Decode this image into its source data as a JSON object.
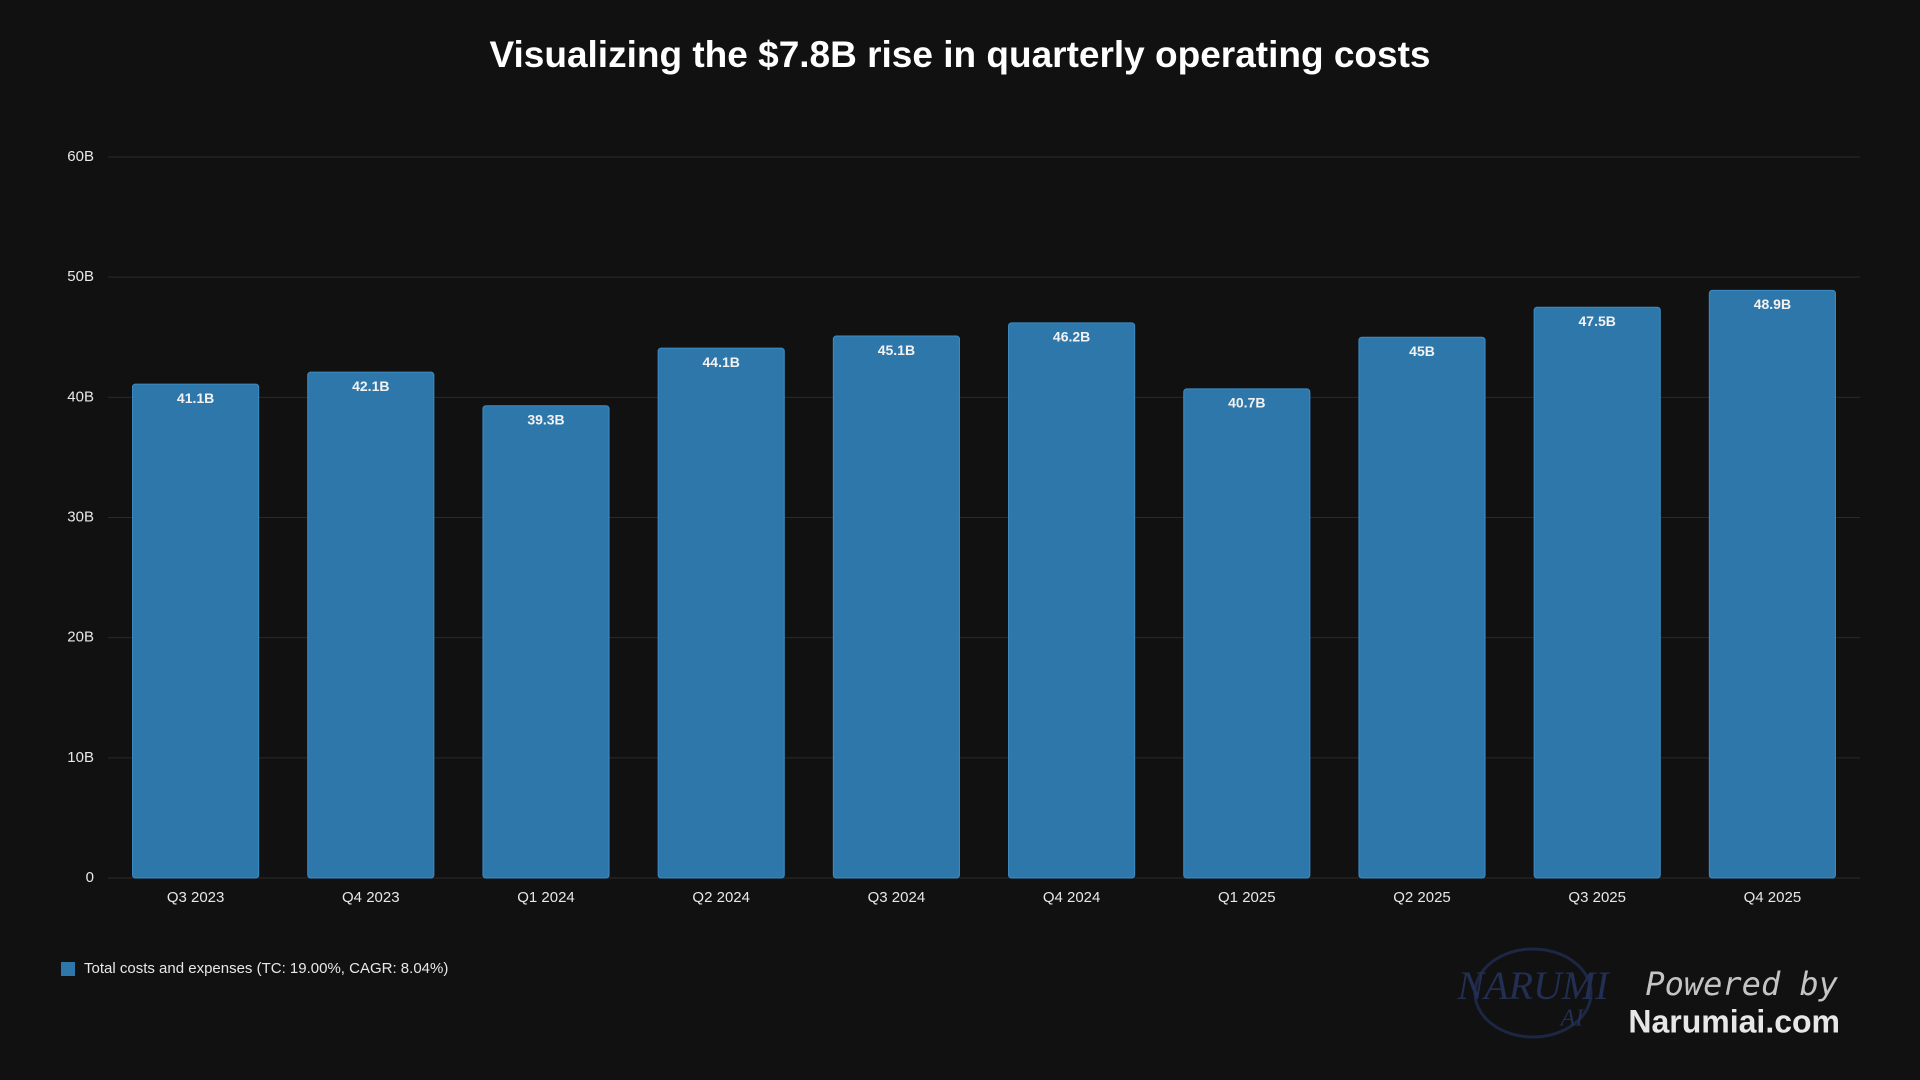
{
  "chart_data": {
    "type": "bar",
    "title": "Visualizing the $7.8B rise in quarterly operating costs",
    "categories": [
      "Q3 2023",
      "Q4 2023",
      "Q1 2024",
      "Q2 2024",
      "Q3 2024",
      "Q4 2024",
      "Q1 2025",
      "Q2 2025",
      "Q3 2025",
      "Q4 2025"
    ],
    "series": [
      {
        "name": "Total costs and expenses (TC: 19.00%, CAGR: 8.04%)",
        "color": "#2e77ab",
        "values": [
          41.1,
          42.1,
          39.3,
          44.1,
          45.1,
          46.2,
          40.7,
          45,
          47.5,
          48.9
        ],
        "value_labels": [
          "41.1B",
          "42.1B",
          "39.3B",
          "44.1B",
          "45.1B",
          "46.2B",
          "40.7B",
          "45B",
          "47.5B",
          "48.9B"
        ]
      }
    ],
    "ylim": [
      0,
      60
    ],
    "yticks": [
      0,
      {
        "value": 10,
        "label": "10B"
      },
      {
        "value": 20,
        "label": "20B"
      },
      {
        "value": 30,
        "label": "30B"
      },
      {
        "value": 40,
        "label": "40B"
      },
      {
        "value": 50,
        "label": "50B"
      },
      {
        "value": 60,
        "label": "60B"
      }
    ],
    "grid": true,
    "legend": "bottom-left"
  },
  "branding": {
    "logo": "NARUMI",
    "logo_sub": "AI",
    "powered_by": "Powered by",
    "site": "Narumiai.com"
  }
}
